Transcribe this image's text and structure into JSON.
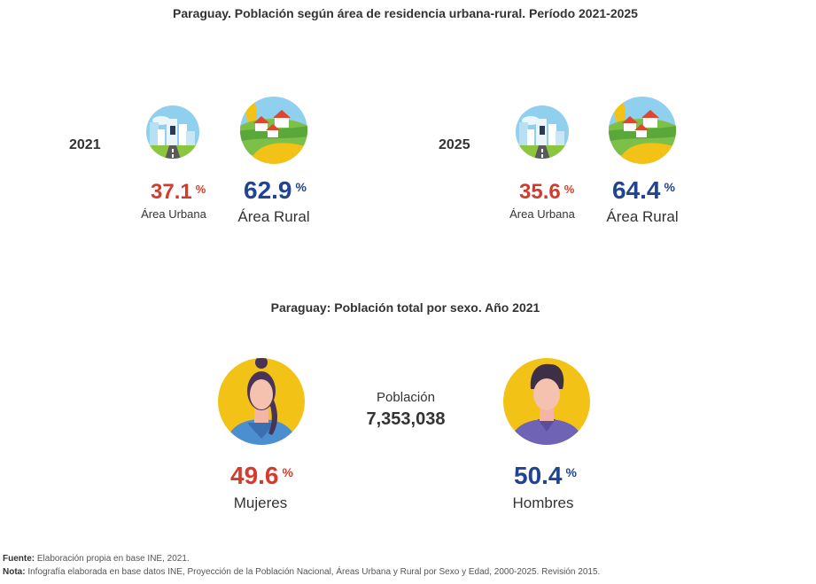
{
  "header": {
    "title": "Paraguay. Población según área de residencia urbana-rural. Período 2021-2025"
  },
  "area_2021": {
    "year": "2021",
    "urban_value": "37.1",
    "urban_unit": "%",
    "urban_label": "Área Urbana",
    "rural_value": "62.9",
    "rural_unit": "%",
    "rural_label": "Área Rural"
  },
  "area_2025": {
    "year": "2025",
    "urban_value": "35.6",
    "urban_unit": "%",
    "urban_label": "Área Urbana",
    "rural_value": "64.4",
    "rural_unit": "%",
    "rural_label": "Área Rural"
  },
  "sex": {
    "title": "Paraguay: Población total por sexo. Año 2021",
    "population_label": "Población",
    "population_value": "7,353,038",
    "women_value": "49.6",
    "women_unit": "%",
    "women_label": "Mujeres",
    "men_value": "50.4",
    "men_unit": "%",
    "men_label": "Hombres"
  },
  "footer": {
    "source_label": "Fuente:",
    "source_text": "Elaboración propia en base INE, 2021.",
    "note_label": "Nota:",
    "note_text": "Infografía elaborada en base datos INE, Proyección de la Población Nacional, Áreas Urbana y Rural por Sexo y Edad, 2000-2025. Revisión 2015."
  },
  "colors": {
    "urban_accent": "#d63a2c",
    "rural_accent": "#1f4494",
    "icon_circle_yellow": "#f2c316",
    "city_sky": "#8fd0ee",
    "countryside_green": "#7cc04a"
  },
  "icons": {
    "urban": "city-icon",
    "rural": "countryside-icon",
    "women": "woman-avatar-icon",
    "men": "man-avatar-icon"
  }
}
